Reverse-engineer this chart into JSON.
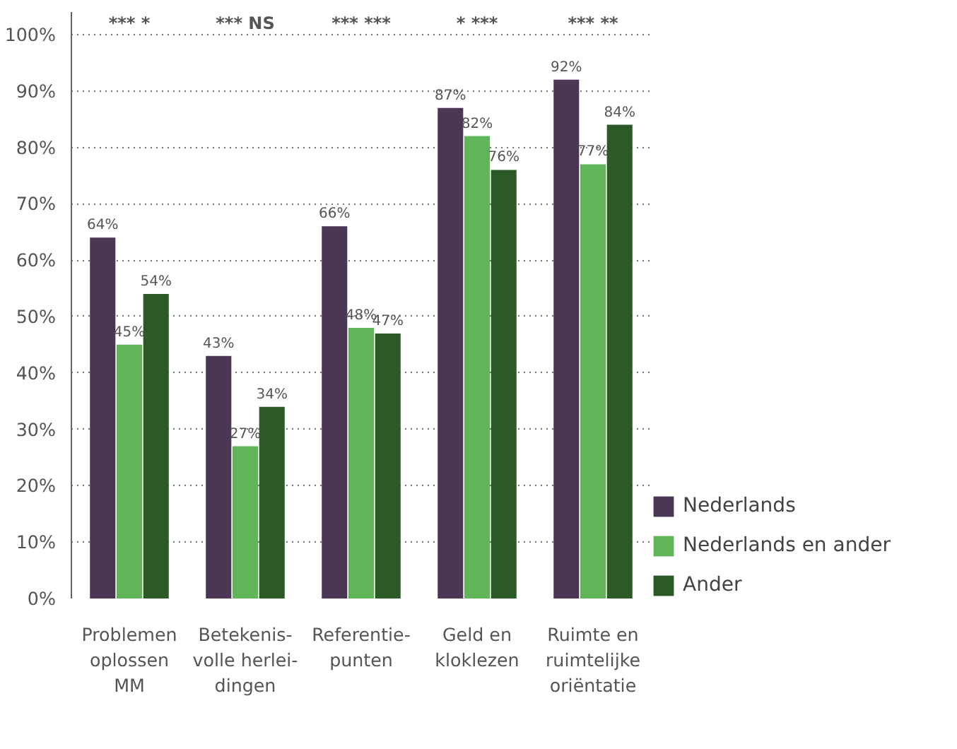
{
  "chart_data": {
    "type": "bar",
    "categories": [
      "Problemen\noplossen\nMM",
      "Betekenis-\nvolle herlei-\ndingen",
      "Referentie-\npunten",
      "Geld en\nkloklezen",
      "Ruimte en\nruimtelijke\noriëntatie"
    ],
    "series": [
      {
        "name": "Nederlands",
        "color": "#4b3753",
        "values": [
          64,
          43,
          66,
          87,
          92
        ],
        "value_labels": [
          "64%",
          "43%",
          "66%",
          "87%",
          "92%"
        ]
      },
      {
        "name": "Nederlands en ander",
        "color": "#60b558",
        "values": [
          45,
          27,
          48,
          82,
          77
        ],
        "value_labels": [
          "45%",
          "27%",
          "48%",
          "82%",
          "77%"
        ]
      },
      {
        "name": "Ander",
        "color": "#2b5a27",
        "values": [
          54,
          34,
          47,
          76,
          84
        ],
        "value_labels": [
          "54%",
          "34%",
          "47%",
          "76%",
          "84%"
        ]
      }
    ],
    "ylim": [
      0,
      104
    ],
    "yticks": [
      {
        "value": 0,
        "label": "0%"
      },
      {
        "value": 10,
        "label": "10%"
      },
      {
        "value": 20,
        "label": "20%"
      },
      {
        "value": 30,
        "label": "30%"
      },
      {
        "value": 40,
        "label": "40%"
      },
      {
        "value": 50,
        "label": "50%"
      },
      {
        "value": 60,
        "label": "60%"
      },
      {
        "value": 70,
        "label": "70%"
      },
      {
        "value": 80,
        "label": "80%"
      },
      {
        "value": 90,
        "label": "90%"
      },
      {
        "value": 100,
        "label": "100%"
      }
    ],
    "grid": "y",
    "legend": "bottom right",
    "annotations": [
      "*** *",
      "*** NS",
      "*** ***",
      "* ***",
      "*** **"
    ]
  }
}
